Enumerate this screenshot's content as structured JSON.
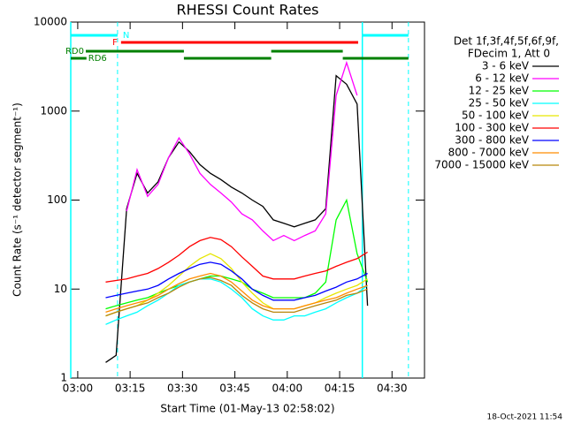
{
  "chart_data": {
    "type": "line",
    "title": "RHESSI Count Rates",
    "xlabel": "Start Time (01-May-13 02:58:02)",
    "ylabel": "Count Rate (s⁻¹ detector segment⁻¹)",
    "footer": "18-Oct-2021 11:54",
    "legend_header": [
      "Det 1f,3f,4f,5f,6f,9f,",
      "FDecim 1, Att 0"
    ],
    "log_y": true,
    "xlim": [
      -2,
      99.3
    ],
    "ylim": [
      1,
      10000
    ],
    "xticks": [
      {
        "value": 0,
        "label": "03:00"
      },
      {
        "value": 15,
        "label": "03:15"
      },
      {
        "value": 30,
        "label": "03:30"
      },
      {
        "value": 45,
        "label": "03:45"
      },
      {
        "value": 60,
        "label": "04:00"
      },
      {
        "value": 75,
        "label": "04:15"
      },
      {
        "value": 90,
        "label": "04:30"
      }
    ],
    "yticks": [
      1,
      10,
      100,
      1000,
      10000
    ],
    "x": [
      8,
      11,
      14,
      17,
      20,
      23,
      26,
      29,
      32,
      35,
      38,
      41,
      44,
      47,
      50,
      53,
      56,
      59,
      62,
      65,
      68,
      71,
      74,
      77,
      80,
      83
    ],
    "series": [
      {
        "name": "3 - 6 keV",
        "color": "#000000",
        "values": [
          1.5,
          1.8,
          80,
          200,
          120,
          160,
          300,
          450,
          350,
          250,
          200,
          170,
          140,
          120,
          100,
          85,
          60,
          55,
          50,
          55,
          60,
          80,
          2500,
          2000,
          1200,
          6.5
        ]
      },
      {
        "name": "6 - 12 keV",
        "color": "#ff00ff",
        "values": [
          null,
          null,
          75,
          220,
          110,
          150,
          300,
          500,
          330,
          200,
          150,
          120,
          95,
          70,
          60,
          45,
          35,
          40,
          35,
          40,
          45,
          70,
          1500,
          3500,
          1500,
          null
        ]
      },
      {
        "name": "12 - 25 keV",
        "color": "#00ff00",
        "values": [
          6,
          6.5,
          7,
          7.5,
          8,
          9,
          10,
          11,
          12,
          13,
          14,
          14,
          13,
          12,
          10,
          9,
          8,
          8,
          8,
          8,
          9,
          12,
          60,
          100,
          25,
          12
        ]
      },
      {
        "name": "25 - 50 keV",
        "color": "#00ffff",
        "values": [
          4,
          4.5,
          5,
          5.5,
          6.5,
          7.5,
          9,
          11,
          12,
          13,
          13,
          12,
          10,
          8,
          6,
          5,
          4.5,
          4.5,
          5,
          5,
          5.5,
          6,
          7,
          8,
          9,
          11
        ]
      },
      {
        "name": "50 - 100 keV",
        "color": "#e6e600",
        "values": [
          5,
          5.5,
          6,
          6.5,
          7.5,
          9,
          11,
          14,
          18,
          22,
          25,
          22,
          17,
          12,
          9,
          7,
          6,
          6,
          6,
          6.5,
          7,
          8,
          9,
          10,
          11,
          13
        ]
      },
      {
        "name": "100 - 300 keV",
        "color": "#ff0000",
        "values": [
          12,
          12.5,
          13,
          14,
          15,
          17,
          20,
          24,
          30,
          35,
          38,
          36,
          30,
          23,
          18,
          14,
          13,
          13,
          13,
          14,
          15,
          16,
          18,
          20,
          22,
          26
        ]
      },
      {
        "name": "300 - 800 keV",
        "color": "#0000ff",
        "values": [
          8,
          8.5,
          9,
          9.5,
          10,
          11,
          13,
          15,
          17,
          19,
          20,
          19,
          16,
          13,
          10,
          8.5,
          7.5,
          7.5,
          7.5,
          8,
          8.5,
          9.5,
          10.5,
          12,
          13,
          15
        ]
      },
      {
        "name": "800 - 7000 keV",
        "color": "#ff8c00",
        "values": [
          5.5,
          6,
          6.5,
          7,
          7.5,
          8.5,
          10,
          11.5,
          13,
          14,
          15,
          14,
          12,
          9.5,
          7.5,
          6.5,
          6,
          6,
          6,
          6.5,
          7,
          7.5,
          8,
          9,
          10,
          11
        ]
      },
      {
        "name": "7000 - 15000 keV",
        "color": "#b8860b",
        "values": [
          5,
          5.5,
          6,
          6.5,
          7,
          8,
          9,
          10.5,
          12,
          13,
          13.5,
          12.5,
          11,
          8.5,
          7,
          6,
          5.5,
          5.5,
          5.5,
          6,
          6.5,
          7,
          7.5,
          8.5,
          9,
          10
        ]
      }
    ],
    "flags": [
      {
        "label": "N",
        "color": "#00ffff",
        "segments": [
          [
            -2,
            11.4
          ],
          [
            81.5,
            94.7
          ]
        ]
      },
      {
        "label": "F",
        "color": "#ff0000",
        "segments": [
          [
            12.4,
            80.3
          ]
        ]
      },
      {
        "label": "RD0",
        "color": "#008000",
        "segments": [
          [
            2.3,
            30.4
          ],
          [
            55.4,
            75.9
          ]
        ]
      },
      {
        "label": "RD6",
        "color": "#008000",
        "segments": [
          [
            -2,
            2.5
          ],
          [
            30.4,
            55.4
          ],
          [
            75.9,
            94.7
          ]
        ]
      }
    ]
  }
}
